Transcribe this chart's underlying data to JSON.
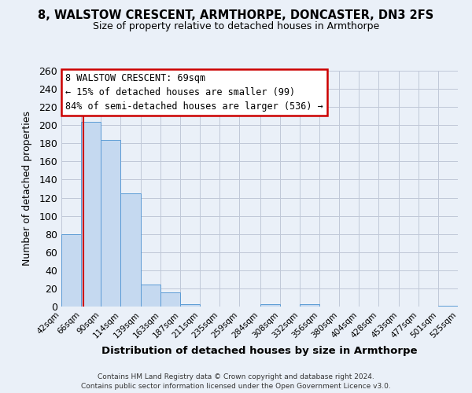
{
  "title": "8, WALSTOW CRESCENT, ARMTHORPE, DONCASTER, DN3 2FS",
  "subtitle": "Size of property relative to detached houses in Armthorpe",
  "xlabel": "Distribution of detached houses by size in Armthorpe",
  "ylabel": "Number of detached properties",
  "bar_edges": [
    42,
    66,
    90,
    114,
    139,
    163,
    187,
    211,
    235,
    259,
    284,
    308,
    332,
    356,
    380,
    404,
    428,
    453,
    477,
    501,
    525
  ],
  "bar_heights": [
    80,
    204,
    184,
    125,
    24,
    16,
    3,
    0,
    0,
    0,
    3,
    0,
    3,
    0,
    0,
    0,
    0,
    0,
    0,
    1
  ],
  "bar_color": "#c5d9f0",
  "bar_edge_color": "#5b9bd5",
  "property_line_x": 69,
  "property_line_color": "#cc0000",
  "ylim": [
    0,
    260
  ],
  "yticks": [
    0,
    20,
    40,
    60,
    80,
    100,
    120,
    140,
    160,
    180,
    200,
    220,
    240,
    260
  ],
  "xtick_labels": [
    "42sqm",
    "66sqm",
    "90sqm",
    "114sqm",
    "139sqm",
    "163sqm",
    "187sqm",
    "211sqm",
    "235sqm",
    "259sqm",
    "284sqm",
    "308sqm",
    "332sqm",
    "356sqm",
    "380sqm",
    "404sqm",
    "428sqm",
    "453sqm",
    "477sqm",
    "501sqm",
    "525sqm"
  ],
  "annotation_title": "8 WALSTOW CRESCENT: 69sqm",
  "annotation_line1": "← 15% of detached houses are smaller (99)",
  "annotation_line2": "84% of semi-detached houses are larger (536) →",
  "annotation_box_color": "#ffffff",
  "annotation_border_color": "#cc0000",
  "grid_color": "#c0c8d8",
  "bg_color": "#eaf0f8",
  "footer_line1": "Contains HM Land Registry data © Crown copyright and database right 2024.",
  "footer_line2": "Contains public sector information licensed under the Open Government Licence v3.0."
}
